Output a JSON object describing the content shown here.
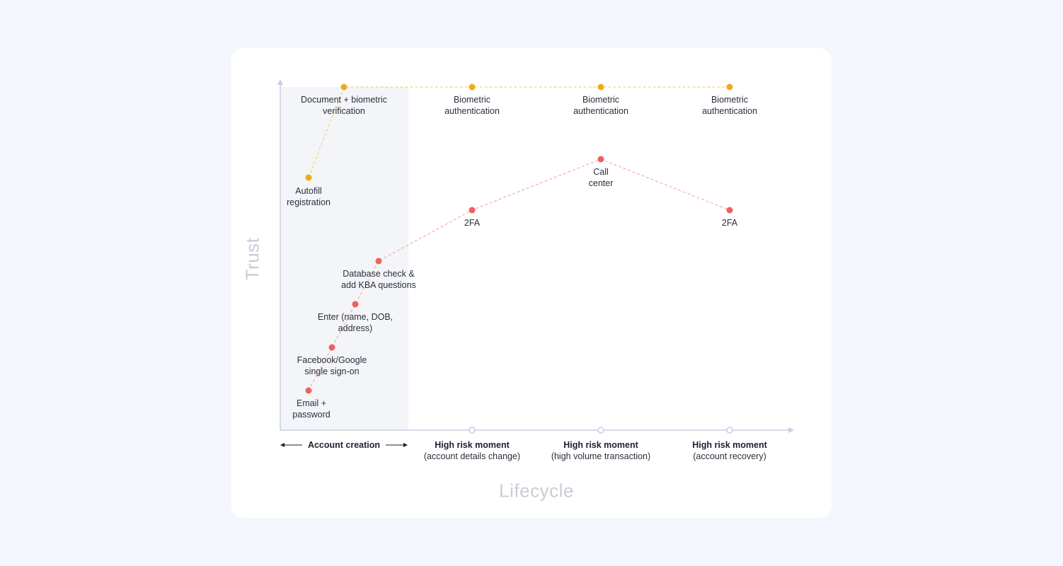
{
  "axes": {
    "y_title": "Trust",
    "x_title": "Lifecycle"
  },
  "colors": {
    "biometric_path": "#f2a91c",
    "legacy_path": "#ef6161",
    "account_creation_band": "#f3f5f9",
    "axis": "#c8cde0"
  },
  "phases": [
    {
      "title": "Account creation",
      "subtitle": ""
    },
    {
      "title": "High risk moment",
      "subtitle": "(account details change)"
    },
    {
      "title": "High risk moment",
      "subtitle": "(high volume transaction)"
    },
    {
      "title": "High risk moment",
      "subtitle": "(account recovery)"
    }
  ],
  "yellow_points": [
    {
      "label": "Autofill\nregistration"
    },
    {
      "label": "Document + biometric\nverification"
    },
    {
      "label": "Biometric\nauthentication"
    },
    {
      "label": "Biometric\nauthentication"
    },
    {
      "label": "Biometric\nauthentication"
    }
  ],
  "red_points": [
    {
      "label": "Email +\npassword"
    },
    {
      "label": "Facebook/Google\nsingle sign-on"
    },
    {
      "label": "Enter (name, DOB,\naddress)"
    },
    {
      "label": "Database check &\nadd KBA questions"
    },
    {
      "label": "2FA"
    },
    {
      "label": "Call\ncenter"
    },
    {
      "label": "2FA"
    }
  ]
}
